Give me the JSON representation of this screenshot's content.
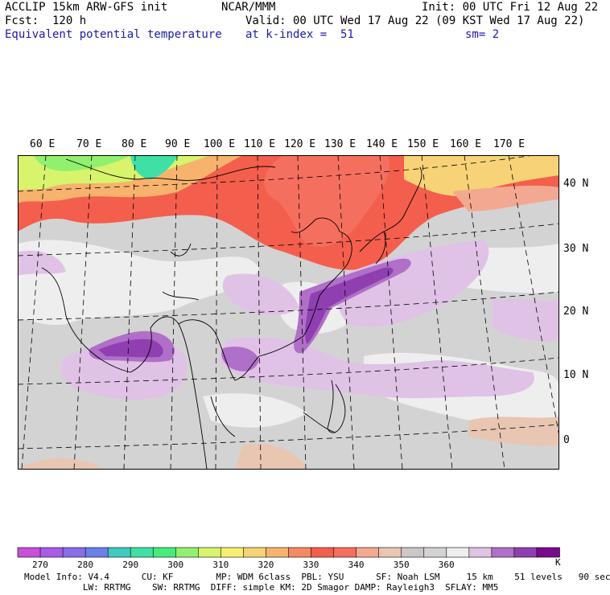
{
  "header": {
    "line1_left": "ACCLIP 15km ARW-GFS init",
    "line1_center": "NCAR/MMM",
    "line1_right": "Init: 00 UTC Fri 12 Aug 22",
    "line2_left": "Fcst:  120 h",
    "line2_right": "Valid: 00 UTC Wed 17 Aug 22 (09 KST Wed 17 Aug 22)",
    "field_name": "Equivalent potential temperature",
    "level": "at k-index =  51",
    "smoothing": "sm= 2"
  },
  "map": {
    "lon_labels": [
      "60 E",
      "70 E",
      "80 E",
      "90 E",
      "100 E",
      "110 E",
      "120 E",
      "130 E",
      "140 E",
      "150 E",
      "160 E",
      "170 E"
    ],
    "lat_labels": [
      "40 N",
      "30 N",
      "20 N",
      "10 N",
      "0"
    ]
  },
  "colorbar": {
    "colors": [
      "#c94fd8",
      "#a95ce6",
      "#8a6de8",
      "#6b80ea",
      "#3fc9c0",
      "#3fe0a6",
      "#49ea7c",
      "#92f070",
      "#d7f46c",
      "#f6f070",
      "#f7d276",
      "#f7b26e",
      "#f48a62",
      "#f45e4d",
      "#f56f5f",
      "#f3a892",
      "#e8c6b2",
      "#cbc7c5",
      "#d3d3d3",
      "#eeeeee",
      "#e0c2e6",
      "#b06fc8",
      "#8f3fb0",
      "#7a0a8c"
    ],
    "labels": [
      "270",
      "280",
      "290",
      "300",
      "310",
      "320",
      "330",
      "340",
      "350",
      "360"
    ],
    "unit": "K"
  },
  "footer": {
    "line1": "Model Info: V4.4      CU: KF        MP: WDM 6class  PBL: YSU      SF: Noah LSM     15 km    51 levels   90 sec",
    "line2": "           LW: RRTMG    SW: RRTMG  DIFF: simple KM: 2D Smagor DAMP: Rayleigh3  SFLAY: MM5"
  }
}
